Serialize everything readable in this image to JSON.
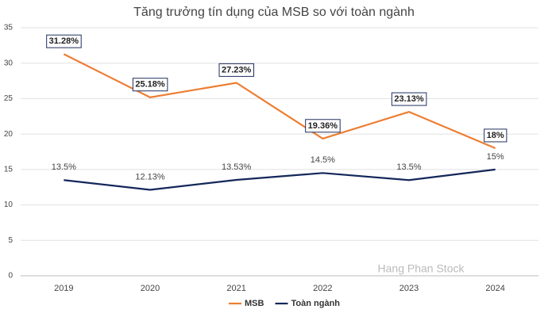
{
  "chart_data": {
    "type": "line",
    "title": "Tăng trưởng tín dụng của MSB so với toàn ngành",
    "categories": [
      "2019",
      "2020",
      "2021",
      "2022",
      "2023",
      "2024"
    ],
    "series": [
      {
        "name": "MSB",
        "color": "#ed7d31",
        "values": [
          31.28,
          25.18,
          27.23,
          19.36,
          23.13,
          18
        ],
        "value_labels": [
          "31.28%",
          "25.18%",
          "27.23%",
          "19.36%",
          "23.13%",
          "18%"
        ]
      },
      {
        "name": "Toàn ngành",
        "color": "#14275a",
        "values": [
          13.5,
          12.13,
          13.53,
          14.5,
          13.5,
          15
        ],
        "value_labels": [
          "13.5%",
          "12.13%",
          "13.53%",
          "14.5%",
          "13.5%",
          "15%"
        ]
      }
    ],
    "ylim": [
      0,
      35
    ],
    "yticks": [
      0,
      5,
      10,
      15,
      20,
      25,
      30,
      35
    ],
    "grid": true,
    "legend": "bottom",
    "watermark": "Hang Phan Stock"
  }
}
